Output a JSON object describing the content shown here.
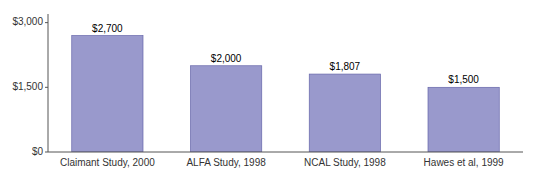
{
  "chart_data": {
    "type": "bar",
    "categories": [
      "Claimant Study, 2000",
      "ALFA Study, 1998",
      "NCAL Study, 1998",
      "Hawes et al, 1999"
    ],
    "values": [
      2700,
      2000,
      1807,
      1500
    ],
    "value_labels": [
      "$2,700",
      "$2,000",
      "$1,807",
      "$1,500"
    ],
    "data_labels": true,
    "color": "#9999cc",
    "ylim": [
      0,
      3200
    ],
    "yticks": [
      {
        "value": 0,
        "label": "$0"
      },
      {
        "value": 1500,
        "label": "$1,500"
      },
      {
        "value": 3000,
        "label": "$3,000"
      }
    ],
    "grid": false
  }
}
